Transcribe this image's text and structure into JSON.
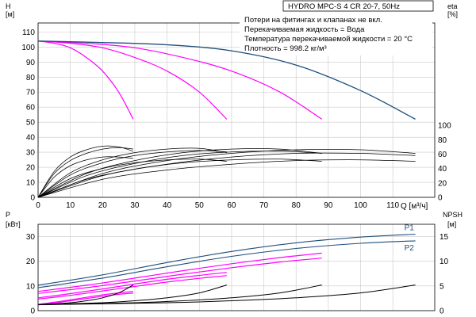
{
  "chart_data": {
    "type": "line",
    "title": "HYDRO MPC-S 4 CR 20-7, 50Hz",
    "notes": [
      "Потери на фитингах и клапанах не вкл.",
      "Перекачиваемая жидкость = Вода",
      "Температура перекачиваемой жидкости = 20 °C",
      "Плотность = 998.2 кг/м³"
    ],
    "grid": true,
    "colors": {
      "pump": "#ff00ff",
      "system": "#1f4e7a",
      "eta": "#000000",
      "npsh": "#000000",
      "grid": "#c9c9c9"
    },
    "x_axis": {
      "label": "Q [м³/ч]",
      "ticks": [
        0,
        10,
        20,
        30,
        40,
        50,
        60,
        70,
        80,
        90,
        100,
        110
      ],
      "lim": [
        0,
        123
      ]
    },
    "head_panel": {
      "y_label": "H",
      "y_unit": "[м]",
      "y_ticks": [
        0,
        10,
        20,
        30,
        40,
        50,
        60,
        70,
        80,
        90,
        100,
        110
      ],
      "ylim": [
        0,
        116
      ],
      "y2_label": "eta",
      "y2_unit": "[%]",
      "y2_ticks": [
        0,
        20,
        40,
        60,
        80,
        100
      ],
      "y2lim": [
        0,
        242
      ],
      "series": [
        {
          "group": "pump",
          "points": [
            [
              0,
              104
            ],
            [
              5,
              102.5
            ],
            [
              10,
              99.5
            ],
            [
              15,
              93
            ],
            [
              20,
              84
            ],
            [
              25,
              70
            ],
            [
              29.5,
              52
            ]
          ]
        },
        {
          "group": "pump",
          "points": [
            [
              0,
              104
            ],
            [
              10,
              102.5
            ],
            [
              20,
              99.5
            ],
            [
              30,
              93
            ],
            [
              40,
              84
            ],
            [
              50,
              70
            ],
            [
              58.5,
              52
            ]
          ]
        },
        {
          "group": "pump",
          "points": [
            [
              0,
              104
            ],
            [
              15,
              102.5
            ],
            [
              30,
              99.5
            ],
            [
              45,
              93
            ],
            [
              60,
              84
            ],
            [
              75,
              70
            ],
            [
              88,
              52
            ]
          ]
        },
        {
          "group": "system",
          "points": [
            [
              0,
              104
            ],
            [
              20,
              103
            ],
            [
              40,
              101.5
            ],
            [
              60,
              97.5
            ],
            [
              80,
              88
            ],
            [
              100,
              71
            ],
            [
              117,
              52
            ]
          ]
        },
        {
          "group": "eta",
          "points": [
            [
              0,
              0
            ],
            [
              5,
              36
            ],
            [
              10,
              56
            ],
            [
              15,
              66
            ],
            [
              20,
              71
            ],
            [
              25,
              70
            ],
            [
              29.5,
              64
            ]
          ]
        },
        {
          "group": "eta",
          "points": [
            [
              0,
              0
            ],
            [
              5,
              33
            ],
            [
              10,
              51
            ],
            [
              15,
              61
            ],
            [
              20,
              67
            ],
            [
              25,
              69
            ],
            [
              29.5,
              67
            ]
          ]
        },
        {
          "group": "eta",
          "points": [
            [
              0,
              0
            ],
            [
              5,
              28
            ],
            [
              10,
              44
            ],
            [
              15,
              52
            ],
            [
              20,
              56
            ],
            [
              25,
              56
            ],
            [
              29.5,
              54
            ]
          ]
        },
        {
          "group": "eta",
          "points": [
            [
              0,
              0
            ],
            [
              10,
              34
            ],
            [
              20,
              52
            ],
            [
              30,
              62
            ],
            [
              40,
              67
            ],
            [
              50,
              68
            ],
            [
              58.5,
              62
            ]
          ]
        },
        {
          "group": "eta",
          "points": [
            [
              0,
              0
            ],
            [
              10,
              31
            ],
            [
              20,
              48
            ],
            [
              30,
              58
            ],
            [
              40,
              63
            ],
            [
              50,
              65
            ],
            [
              58.5,
              63
            ]
          ]
        },
        {
          "group": "eta",
          "points": [
            [
              0,
              0
            ],
            [
              10,
              26
            ],
            [
              20,
              40
            ],
            [
              30,
              48
            ],
            [
              40,
              52
            ],
            [
              50,
              53
            ],
            [
              58.5,
              50
            ]
          ]
        },
        {
          "group": "eta",
          "points": [
            [
              0,
              0
            ],
            [
              15,
              33
            ],
            [
              30,
              51
            ],
            [
              45,
              62
            ],
            [
              60,
              67
            ],
            [
              75,
              67
            ],
            [
              88,
              61
            ]
          ]
        },
        {
          "group": "eta",
          "points": [
            [
              0,
              0
            ],
            [
              15,
              30
            ],
            [
              30,
              47
            ],
            [
              45,
              58
            ],
            [
              60,
              63
            ],
            [
              75,
              64
            ],
            [
              88,
              61
            ]
          ]
        },
        {
          "group": "eta",
          "points": [
            [
              0,
              0
            ],
            [
              15,
              25
            ],
            [
              30,
              39
            ],
            [
              45,
              48
            ],
            [
              60,
              52
            ],
            [
              75,
              53
            ],
            [
              88,
              50
            ]
          ]
        },
        {
          "group": "eta",
          "points": [
            [
              0,
              0
            ],
            [
              20,
              33
            ],
            [
              40,
              51
            ],
            [
              60,
              61
            ],
            [
              80,
              66
            ],
            [
              100,
              66
            ],
            [
              117,
              61
            ]
          ]
        },
        {
          "group": "eta",
          "points": [
            [
              0,
              0
            ],
            [
              20,
              30
            ],
            [
              40,
              46
            ],
            [
              60,
              56
            ],
            [
              80,
              61
            ],
            [
              100,
              61
            ],
            [
              117,
              58
            ]
          ]
        },
        {
          "group": "eta",
          "points": [
            [
              0,
              0
            ],
            [
              20,
              25
            ],
            [
              40,
              38
            ],
            [
              60,
              46
            ],
            [
              80,
              51
            ],
            [
              100,
              52
            ],
            [
              117,
              50
            ]
          ]
        }
      ]
    },
    "power_panel": {
      "y_label": "P",
      "y_unit": "[кВт]",
      "y_ticks": [
        0,
        10,
        20,
        30
      ],
      "ylim": [
        0,
        35
      ],
      "y2_label": "NPSH",
      "y2_unit": "[м]",
      "y2_ticks": [
        0,
        5,
        10,
        15
      ],
      "y2lim": [
        0,
        17.5
      ],
      "series": [
        {
          "group": "p_total",
          "name": "P1",
          "points": [
            [
              0,
              10.3
            ],
            [
              20,
              14.5
            ],
            [
              40,
              19.5
            ],
            [
              60,
              24
            ],
            [
              80,
              27.5
            ],
            [
              100,
              29.8
            ],
            [
              117,
              31
            ]
          ]
        },
        {
          "group": "p_total",
          "name": "P2",
          "points": [
            [
              0,
              9.3
            ],
            [
              20,
              13.2
            ],
            [
              40,
              17.8
            ],
            [
              60,
              22
            ],
            [
              80,
              25.2
            ],
            [
              100,
              27.3
            ],
            [
              117,
              28.3
            ]
          ]
        },
        {
          "group": "pump",
          "points": [
            [
              0,
              7.8
            ],
            [
              15,
              10.3
            ],
            [
              30,
              13.2
            ],
            [
              45,
              16.2
            ],
            [
              60,
              19
            ],
            [
              75,
              21.5
            ],
            [
              88,
              23.3
            ]
          ]
        },
        {
          "group": "pump",
          "points": [
            [
              0,
              7
            ],
            [
              15,
              9.3
            ],
            [
              30,
              12
            ],
            [
              45,
              14.8
            ],
            [
              60,
              17.4
            ],
            [
              75,
              19.7
            ],
            [
              88,
              21.3
            ]
          ]
        },
        {
          "group": "pump",
          "points": [
            [
              0,
              5.2
            ],
            [
              10,
              6.9
            ],
            [
              20,
              8.8
            ],
            [
              30,
              10.8
            ],
            [
              40,
              12.7
            ],
            [
              50,
              14.3
            ],
            [
              58.5,
              15.5
            ]
          ]
        },
        {
          "group": "pump",
          "points": [
            [
              0,
              4.7
            ],
            [
              10,
              6.2
            ],
            [
              20,
              8
            ],
            [
              30,
              9.8
            ],
            [
              40,
              11.6
            ],
            [
              50,
              13.1
            ],
            [
              58.5,
              14.2
            ]
          ]
        },
        {
          "group": "pump",
          "points": [
            [
              0,
              2.6
            ],
            [
              5,
              3.4
            ],
            [
              10,
              4.4
            ],
            [
              15,
              5.4
            ],
            [
              20,
              6.4
            ],
            [
              25,
              7.2
            ],
            [
              29.5,
              7.8
            ]
          ]
        },
        {
          "group": "pump",
          "points": [
            [
              0,
              2.3
            ],
            [
              5,
              3.1
            ],
            [
              10,
              4
            ],
            [
              15,
              4.9
            ],
            [
              20,
              5.8
            ],
            [
              25,
              6.6
            ],
            [
              29.5,
              7.1
            ]
          ]
        },
        {
          "group": "npsh",
          "points": [
            [
              0,
              1.2
            ],
            [
              10,
              1.6
            ],
            [
              15,
              2
            ],
            [
              20,
              2.6
            ],
            [
              25,
              3.6
            ],
            [
              29.5,
              5.2
            ]
          ]
        },
        {
          "group": "npsh",
          "points": [
            [
              0,
              1.2
            ],
            [
              20,
              1.6
            ],
            [
              30,
              2
            ],
            [
              40,
              2.6
            ],
            [
              50,
              3.6
            ],
            [
              58.5,
              5.2
            ]
          ]
        },
        {
          "group": "npsh",
          "points": [
            [
              0,
              1.2
            ],
            [
              30,
              1.6
            ],
            [
              45,
              2
            ],
            [
              60,
              2.6
            ],
            [
              75,
              3.6
            ],
            [
              88,
              5.2
            ]
          ]
        },
        {
          "group": "npsh",
          "points": [
            [
              0,
              1.2
            ],
            [
              40,
              1.6
            ],
            [
              60,
              2
            ],
            [
              80,
              2.6
            ],
            [
              100,
              3.6
            ],
            [
              117,
              5.2
            ]
          ]
        }
      ]
    }
  }
}
